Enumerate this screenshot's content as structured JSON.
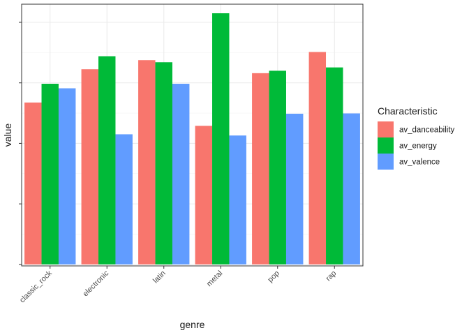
{
  "chart_data": {
    "type": "bar",
    "categories": [
      "classic_rock",
      "electronic",
      "latin",
      "metal",
      "pop",
      "rap"
    ],
    "series": [
      {
        "name": "av_danceability",
        "color": "#F8766D",
        "values": [
          0.535,
          0.645,
          0.675,
          0.458,
          0.632,
          0.702
        ]
      },
      {
        "name": "av_energy",
        "color": "#00BA38",
        "values": [
          0.597,
          0.688,
          0.668,
          0.83,
          0.64,
          0.651
        ]
      },
      {
        "name": "av_valence",
        "color": "#619CFF",
        "values": [
          0.582,
          0.43,
          0.597,
          0.426,
          0.498,
          0.499
        ]
      }
    ],
    "xlabel": "genre",
    "ylabel": "value",
    "ylim": [
      -0.005,
      0.86
    ],
    "y_ticks": [
      0.0,
      0.2,
      0.4,
      0.6,
      0.8
    ],
    "y_tick_labels_shown": false,
    "legend_title": "Characteristic",
    "legend_position": "right",
    "grid": true,
    "theme": "bw"
  }
}
